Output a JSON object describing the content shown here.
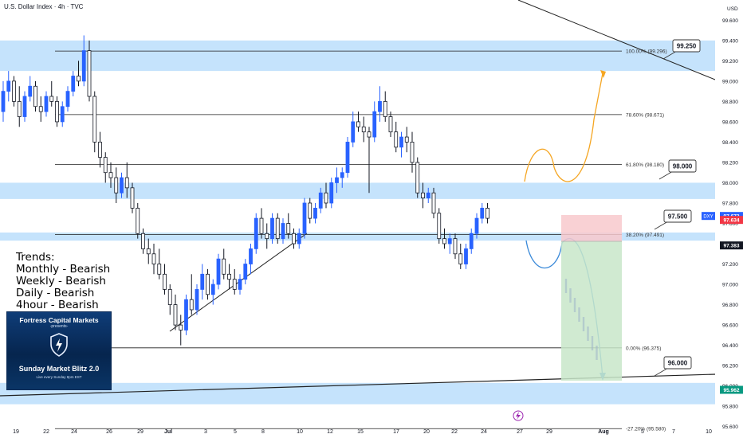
{
  "header": {
    "title": "U.S. Dollar Index · 4h · TVC"
  },
  "chart_data": {
    "type": "candlestick",
    "title": "U.S. Dollar Index · 4h · TVC",
    "currency_label": "USD",
    "ylim": [
      95.48,
      99.72
    ],
    "y_ticks": [
      "99.600",
      "99.400",
      "99.200",
      "99.000",
      "98.800",
      "98.600",
      "98.400",
      "98.200",
      "98.000",
      "97.800",
      "97.600",
      "97.400",
      "97.200",
      "97.000",
      "96.800",
      "96.600",
      "96.400",
      "96.200",
      "96.000",
      "95.800",
      "95.600"
    ],
    "x_ticks": [
      "19",
      "22",
      "24",
      "26",
      "29",
      "Jul",
      "3",
      "5",
      "8",
      "10",
      "12",
      "15",
      "17",
      "20",
      "22",
      "24",
      "27",
      "29",
      "Aug",
      "5",
      "7",
      "10"
    ],
    "price_tags": [
      {
        "label": "DXY",
        "value": "97.673",
        "color": "#2962ff"
      },
      {
        "label": "",
        "value": "97.634",
        "color": "#f23645"
      },
      {
        "label": "",
        "value": "97.383",
        "color": "#131722"
      },
      {
        "label": "",
        "value": "95.962",
        "color": "#089981"
      }
    ],
    "fib_levels": [
      {
        "label": "100.00% (99.296)",
        "price": 99.296
      },
      {
        "label": "78.60% (98.671)",
        "price": 98.671
      },
      {
        "label": "61.80% (98.180)",
        "price": 98.18
      },
      {
        "label": "38.20% (97.491)",
        "price": 97.491
      },
      {
        "label": "0.00% (96.375)",
        "price": 96.375
      },
      {
        "label": "-27.20% (95.580)",
        "price": 95.58
      }
    ],
    "zones": [
      {
        "from": 99.1,
        "to": 99.4
      },
      {
        "from": 97.84,
        "to": 98.0
      },
      {
        "from": 97.43,
        "to": 97.51
      },
      {
        "from": 95.82,
        "to": 96.03
      }
    ],
    "callouts": [
      "99.250",
      "98.000",
      "97.500",
      "96.000"
    ],
    "candles": [
      {
        "o": 98.7,
        "h": 99.0,
        "l": 98.6,
        "c": 98.9
      },
      {
        "o": 98.9,
        "h": 99.1,
        "l": 98.8,
        "c": 99.0
      },
      {
        "o": 99.0,
        "h": 99.05,
        "l": 98.75,
        "c": 98.8
      },
      {
        "o": 98.8,
        "h": 98.95,
        "l": 98.55,
        "c": 98.65
      },
      {
        "o": 98.65,
        "h": 98.9,
        "l": 98.6,
        "c": 98.85
      },
      {
        "o": 98.85,
        "h": 99.05,
        "l": 98.8,
        "c": 98.95
      },
      {
        "o": 98.95,
        "h": 99.0,
        "l": 98.7,
        "c": 98.75
      },
      {
        "o": 98.75,
        "h": 98.85,
        "l": 98.6,
        "c": 98.7
      },
      {
        "o": 98.7,
        "h": 98.9,
        "l": 98.65,
        "c": 98.85
      },
      {
        "o": 98.85,
        "h": 99.0,
        "l": 98.75,
        "c": 98.8
      },
      {
        "o": 98.8,
        "h": 98.85,
        "l": 98.55,
        "c": 98.6
      },
      {
        "o": 98.6,
        "h": 98.8,
        "l": 98.55,
        "c": 98.75
      },
      {
        "o": 98.75,
        "h": 98.95,
        "l": 98.7,
        "c": 98.9
      },
      {
        "o": 98.9,
        "h": 99.1,
        "l": 98.85,
        "c": 99.05
      },
      {
        "o": 99.05,
        "h": 99.2,
        "l": 98.95,
        "c": 99.0
      },
      {
        "o": 99.0,
        "h": 99.45,
        "l": 98.95,
        "c": 99.3
      },
      {
        "o": 99.3,
        "h": 99.4,
        "l": 98.8,
        "c": 98.85
      },
      {
        "o": 98.85,
        "h": 98.9,
        "l": 98.3,
        "c": 98.4
      },
      {
        "o": 98.4,
        "h": 98.5,
        "l": 98.15,
        "c": 98.25
      },
      {
        "o": 98.25,
        "h": 98.3,
        "l": 98.0,
        "c": 98.1
      },
      {
        "o": 98.1,
        "h": 98.2,
        "l": 97.95,
        "c": 98.05
      },
      {
        "o": 98.05,
        "h": 98.15,
        "l": 97.8,
        "c": 97.9
      },
      {
        "o": 97.9,
        "h": 98.1,
        "l": 97.85,
        "c": 98.05
      },
      {
        "o": 98.05,
        "h": 98.2,
        "l": 97.85,
        "c": 97.95
      },
      {
        "o": 97.95,
        "h": 98.0,
        "l": 97.7,
        "c": 97.75
      },
      {
        "o": 97.75,
        "h": 97.8,
        "l": 97.45,
        "c": 97.5
      },
      {
        "o": 97.5,
        "h": 97.55,
        "l": 97.3,
        "c": 97.35
      },
      {
        "o": 97.35,
        "h": 97.45,
        "l": 97.2,
        "c": 97.3
      },
      {
        "o": 97.3,
        "h": 97.4,
        "l": 97.1,
        "c": 97.2
      },
      {
        "o": 97.2,
        "h": 97.35,
        "l": 97.05,
        "c": 97.1
      },
      {
        "o": 97.1,
        "h": 97.2,
        "l": 96.9,
        "c": 96.95
      },
      {
        "o": 96.95,
        "h": 97.0,
        "l": 96.7,
        "c": 96.8
      },
      {
        "o": 96.8,
        "h": 96.9,
        "l": 96.55,
        "c": 96.6
      },
      {
        "o": 96.6,
        "h": 96.7,
        "l": 96.4,
        "c": 96.55
      },
      {
        "o": 96.55,
        "h": 96.9,
        "l": 96.5,
        "c": 96.85
      },
      {
        "o": 96.85,
        "h": 97.1,
        "l": 96.7,
        "c": 96.75
      },
      {
        "o": 96.75,
        "h": 97.0,
        "l": 96.7,
        "c": 96.95
      },
      {
        "o": 96.95,
        "h": 97.2,
        "l": 96.85,
        "c": 97.1
      },
      {
        "o": 97.1,
        "h": 97.15,
        "l": 96.85,
        "c": 96.9
      },
      {
        "o": 96.9,
        "h": 97.05,
        "l": 96.8,
        "c": 97.0
      },
      {
        "o": 97.0,
        "h": 97.3,
        "l": 96.95,
        "c": 97.25
      },
      {
        "o": 97.25,
        "h": 97.35,
        "l": 97.05,
        "c": 97.1
      },
      {
        "o": 97.1,
        "h": 97.2,
        "l": 96.95,
        "c": 97.05
      },
      {
        "o": 97.05,
        "h": 97.15,
        "l": 96.9,
        "c": 96.95
      },
      {
        "o": 96.95,
        "h": 97.1,
        "l": 96.9,
        "c": 97.05
      },
      {
        "o": 97.05,
        "h": 97.25,
        "l": 97.0,
        "c": 97.2
      },
      {
        "o": 97.2,
        "h": 97.4,
        "l": 97.1,
        "c": 97.35
      },
      {
        "o": 97.35,
        "h": 97.7,
        "l": 97.3,
        "c": 97.65
      },
      {
        "o": 97.65,
        "h": 97.75,
        "l": 97.45,
        "c": 97.5
      },
      {
        "o": 97.5,
        "h": 97.6,
        "l": 97.35,
        "c": 97.45
      },
      {
        "o": 97.45,
        "h": 97.7,
        "l": 97.4,
        "c": 97.65
      },
      {
        "o": 97.65,
        "h": 97.7,
        "l": 97.4,
        "c": 97.45
      },
      {
        "o": 97.45,
        "h": 97.65,
        "l": 97.4,
        "c": 97.6
      },
      {
        "o": 97.6,
        "h": 97.7,
        "l": 97.45,
        "c": 97.5
      },
      {
        "o": 97.5,
        "h": 97.55,
        "l": 97.35,
        "c": 97.4
      },
      {
        "o": 97.4,
        "h": 97.55,
        "l": 97.35,
        "c": 97.5
      },
      {
        "o": 97.5,
        "h": 97.85,
        "l": 97.45,
        "c": 97.8
      },
      {
        "o": 97.8,
        "h": 97.85,
        "l": 97.6,
        "c": 97.65
      },
      {
        "o": 97.65,
        "h": 97.8,
        "l": 97.6,
        "c": 97.75
      },
      {
        "o": 97.75,
        "h": 97.95,
        "l": 97.7,
        "c": 97.9
      },
      {
        "o": 97.9,
        "h": 98.0,
        "l": 97.75,
        "c": 97.8
      },
      {
        "o": 97.8,
        "h": 98.05,
        "l": 97.75,
        "c": 98.0
      },
      {
        "o": 98.0,
        "h": 98.15,
        "l": 97.9,
        "c": 98.05
      },
      {
        "o": 98.05,
        "h": 98.15,
        "l": 97.95,
        "c": 98.1
      },
      {
        "o": 98.1,
        "h": 98.45,
        "l": 98.05,
        "c": 98.4
      },
      {
        "o": 98.4,
        "h": 98.7,
        "l": 98.35,
        "c": 98.6
      },
      {
        "o": 98.6,
        "h": 98.7,
        "l": 98.5,
        "c": 98.55
      },
      {
        "o": 98.55,
        "h": 98.65,
        "l": 98.4,
        "c": 98.5
      },
      {
        "o": 98.5,
        "h": 98.55,
        "l": 97.9,
        "c": 98.45
      },
      {
        "o": 98.45,
        "h": 98.8,
        "l": 98.4,
        "c": 98.7
      },
      {
        "o": 98.7,
        "h": 98.95,
        "l": 98.6,
        "c": 98.8
      },
      {
        "o": 98.8,
        "h": 98.9,
        "l": 98.6,
        "c": 98.65
      },
      {
        "o": 98.65,
        "h": 98.7,
        "l": 98.45,
        "c": 98.5
      },
      {
        "o": 98.5,
        "h": 98.6,
        "l": 98.3,
        "c": 98.35
      },
      {
        "o": 98.35,
        "h": 98.5,
        "l": 98.25,
        "c": 98.45
      },
      {
        "o": 98.45,
        "h": 98.55,
        "l": 98.3,
        "c": 98.4
      },
      {
        "o": 98.4,
        "h": 98.5,
        "l": 98.1,
        "c": 98.2
      },
      {
        "o": 98.2,
        "h": 98.25,
        "l": 97.85,
        "c": 97.9
      },
      {
        "o": 97.9,
        "h": 98.0,
        "l": 97.75,
        "c": 97.85
      },
      {
        "o": 97.85,
        "h": 97.95,
        "l": 97.8,
        "c": 97.9
      },
      {
        "o": 97.9,
        "h": 97.95,
        "l": 97.65,
        "c": 97.7
      },
      {
        "o": 97.7,
        "h": 97.75,
        "l": 97.4,
        "c": 97.45
      },
      {
        "o": 97.45,
        "h": 97.55,
        "l": 97.35,
        "c": 97.4
      },
      {
        "o": 97.4,
        "h": 97.5,
        "l": 97.3,
        "c": 97.45
      },
      {
        "o": 97.45,
        "h": 97.5,
        "l": 97.25,
        "c": 97.3
      },
      {
        "o": 97.3,
        "h": 97.4,
        "l": 97.15,
        "c": 97.2
      },
      {
        "o": 97.2,
        "h": 97.4,
        "l": 97.15,
        "c": 97.35
      },
      {
        "o": 97.35,
        "h": 97.55,
        "l": 97.3,
        "c": 97.5
      },
      {
        "o": 97.5,
        "h": 97.7,
        "l": 97.45,
        "c": 97.65
      },
      {
        "o": 97.65,
        "h": 97.8,
        "l": 97.6,
        "c": 97.75
      },
      {
        "o": 97.75,
        "h": 97.8,
        "l": 97.6,
        "c": 97.65
      }
    ],
    "annotations": {
      "trends_title": "Trends:",
      "trends": [
        "Monthly - Bearish",
        "Weekly - Bearish",
        "Daily - Bearish",
        "4hour - Bearish"
      ]
    }
  },
  "promo": {
    "title": "Fortress Capital Markets",
    "presents": "-presents-",
    "name": "Sunday Market Blitz 2.0",
    "sub": "Live every Sunday 8pm EST"
  }
}
